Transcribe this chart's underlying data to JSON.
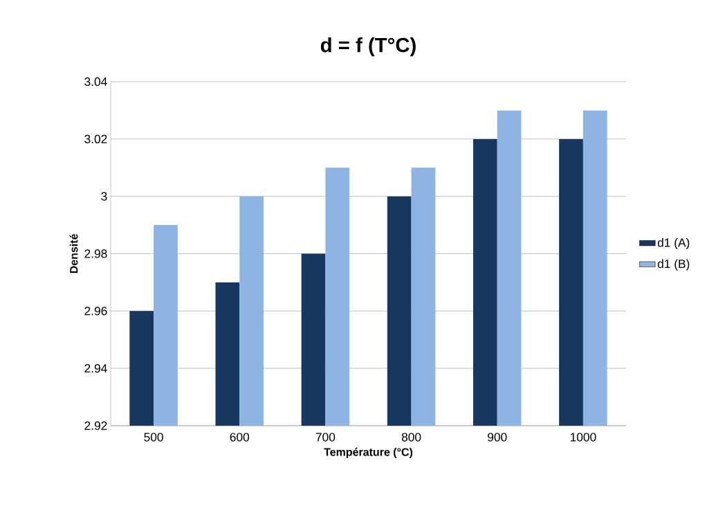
{
  "chart_data": {
    "type": "bar",
    "title": "d = f (T°C)",
    "xlabel": "Température (°C)",
    "ylabel": "Densité",
    "categories": [
      "500",
      "600",
      "700",
      "800",
      "900",
      "1000"
    ],
    "series": [
      {
        "name": "d1 (A)",
        "color": "#17375e",
        "values": [
          2.96,
          2.97,
          2.98,
          3.0,
          3.02,
          3.02
        ]
      },
      {
        "name": "d1 (B)",
        "color": "#8eb4e3",
        "values": [
          2.99,
          3.0,
          3.01,
          3.01,
          3.03,
          3.03
        ]
      }
    ],
    "ylim": [
      2.92,
      3.04
    ],
    "yticks": [
      2.92,
      2.94,
      2.96,
      2.98,
      3,
      3.02,
      3.04
    ],
    "grid": "y",
    "legend": "right"
  }
}
